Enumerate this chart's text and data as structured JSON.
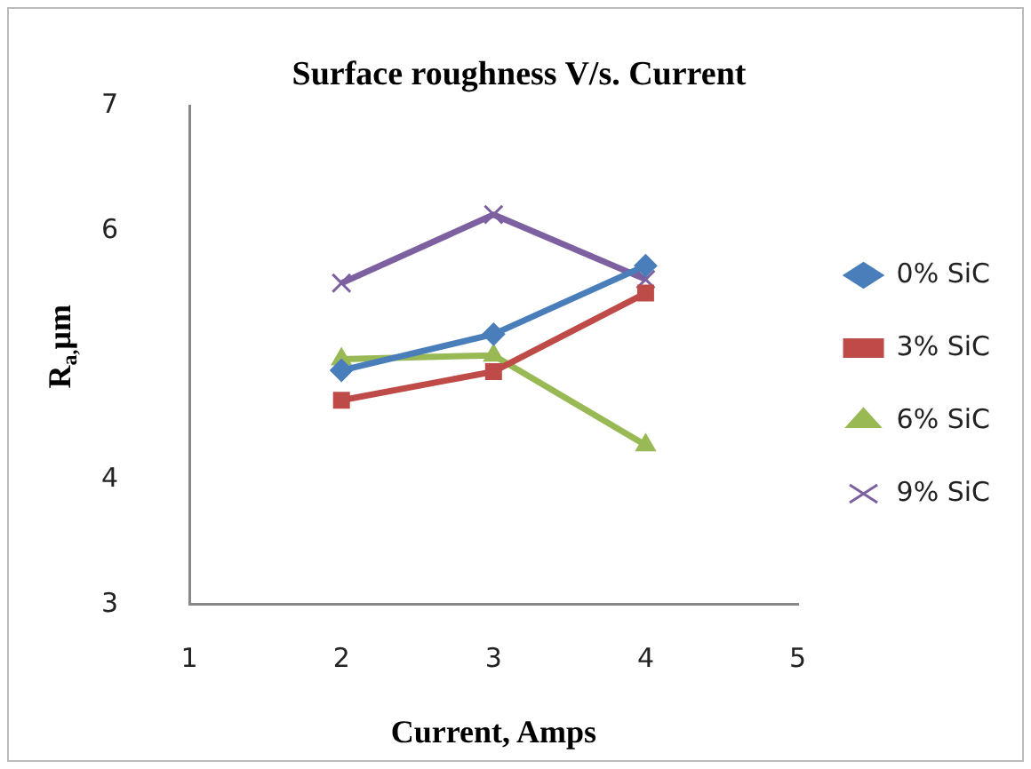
{
  "chart_data": {
    "type": "line",
    "title": "Surface roughness V/s. Current",
    "xlabel": "Current, Amps",
    "ylabel": "R$_{a,}$μm",
    "x": [
      2,
      3,
      4
    ],
    "series": [
      {
        "name": "0% SiC",
        "color": "#4a7ebb",
        "marker": "diamond",
        "values": [
          4.88,
          5.17,
          5.72
        ]
      },
      {
        "name": "3% SiC",
        "color": "#be4b48",
        "marker": "square",
        "values": [
          4.64,
          4.87,
          5.5
        ]
      },
      {
        "name": "6% SiC",
        "color": "#98b954",
        "marker": "triangle",
        "values": [
          4.97,
          5.0,
          4.28
        ]
      },
      {
        "name": "9% SiC",
        "color": "#7d60a0",
        "marker": "cross",
        "values": [
          5.58,
          6.13,
          5.61
        ]
      }
    ],
    "xlim": [
      1,
      5
    ],
    "xticks": [
      1,
      2,
      3,
      4,
      5
    ],
    "ylim": [
      3,
      7
    ],
    "yticks": [
      3,
      4,
      6,
      7
    ],
    "grid": false,
    "legend": "right",
    "line_style": "solid"
  }
}
